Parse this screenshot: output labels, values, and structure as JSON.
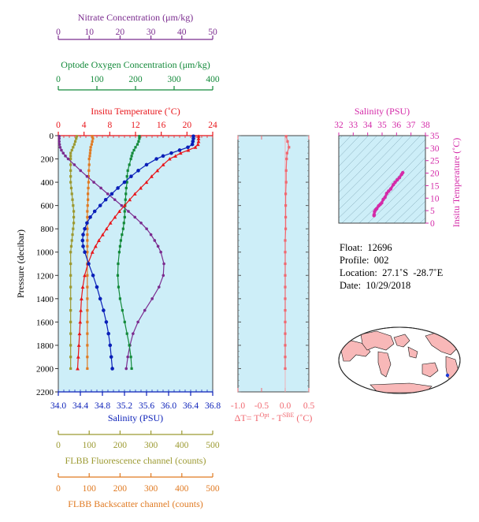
{
  "chart_data": [
    {
      "type": "line",
      "ylabel": "Pressure (decibar)",
      "ylim": [
        2200,
        0
      ],
      "yticks": [
        0,
        200,
        400,
        600,
        800,
        1000,
        1200,
        1400,
        1600,
        1800,
        2000,
        2200
      ],
      "pressure": [
        5,
        25,
        50,
        75,
        100,
        125,
        150,
        175,
        200,
        250,
        300,
        350,
        400,
        450,
        500,
        550,
        600,
        650,
        700,
        750,
        800,
        850,
        900,
        950,
        1000,
        1100,
        1200,
        1300,
        1400,
        1500,
        1600,
        1700,
        1800,
        1900,
        2000
      ],
      "axes": {
        "nitrate": {
          "title": "Nitrate Concentration (μm/kg)",
          "color": "#7b2c8f",
          "lim": [
            0,
            50
          ],
          "ticks": [
            "0",
            "10",
            "20",
            "30",
            "40",
            "50"
          ]
        },
        "oxygen": {
          "title": "Optode Oxygen Concentration (μm/kg)",
          "color": "#138a3a",
          "lim": [
            0,
            400
          ],
          "ticks": [
            "0",
            "100",
            "200",
            "300",
            "400"
          ]
        },
        "temperature": {
          "title": "Insitu Temperature (˚C)",
          "color": "#e8161b",
          "lim": [
            0,
            24
          ],
          "ticks": [
            "0",
            "4",
            "8",
            "12",
            "16",
            "20",
            "24"
          ]
        },
        "salinity": {
          "title": "Salinity (PSU)",
          "color": "#0a1fb8",
          "lim": [
            34.0,
            36.8
          ],
          "ticks": [
            "34.0",
            "34.4",
            "34.8",
            "35.2",
            "35.6",
            "36.0",
            "36.4",
            "36.8"
          ]
        },
        "fluorescence": {
          "title": "FLBB Fluorescence channel (counts)",
          "color": "#9c9a32",
          "lim": [
            0,
            500
          ],
          "ticks": [
            "0",
            "100",
            "200",
            "300",
            "400",
            "500"
          ]
        },
        "backscatter": {
          "title": "FLBB Backscatter channel (counts)",
          "color": "#e07a22",
          "lim": [
            0,
            500
          ],
          "ticks": [
            "0",
            "100",
            "200",
            "300",
            "400",
            "500"
          ]
        }
      },
      "series": [
        {
          "key": "temperature",
          "values": [
            21.8,
            21.8,
            21.8,
            21.7,
            21.3,
            20.2,
            19.0,
            18.2,
            17.3,
            16.3,
            15.4,
            14.5,
            13.7,
            12.8,
            11.9,
            11.1,
            10.3,
            9.5,
            8.8,
            8.1,
            7.5,
            6.9,
            6.3,
            5.8,
            5.3,
            4.6,
            4.1,
            3.8,
            3.6,
            3.5,
            3.4,
            3.3,
            3.2,
            3.1,
            3.0
          ]
        },
        {
          "key": "salinity",
          "values": [
            36.45,
            36.45,
            36.44,
            36.43,
            36.35,
            36.2,
            36.05,
            35.9,
            35.78,
            35.6,
            35.45,
            35.32,
            35.2,
            35.08,
            34.97,
            34.86,
            34.76,
            34.66,
            34.58,
            34.52,
            34.48,
            34.45,
            34.44,
            34.45,
            34.48,
            34.55,
            34.63,
            34.7,
            34.76,
            34.82,
            34.87,
            34.91,
            34.94,
            34.96,
            34.98
          ]
        },
        {
          "key": "oxygen",
          "values": [
            210,
            210,
            208,
            205,
            200,
            196,
            192,
            190,
            188,
            184,
            180,
            178,
            178,
            176,
            175,
            174,
            173,
            172,
            172,
            170,
            168,
            165,
            162,
            160,
            158,
            155,
            154,
            156,
            160,
            166,
            172,
            178,
            184,
            188,
            190
          ]
        },
        {
          "key": "nitrate",
          "values": [
            0.3,
            0.3,
            0.3,
            0.4,
            0.6,
            1.0,
            1.6,
            2.3,
            3.2,
            5.2,
            7.2,
            9.3,
            11.5,
            13.8,
            16.0,
            18.3,
            20.5,
            22.7,
            24.8,
            26.8,
            28.6,
            30.0,
            31.2,
            32.3,
            33.2,
            34.2,
            34.0,
            32.6,
            30.4,
            28.0,
            25.8,
            24.2,
            23.2,
            22.5,
            22.0
          ]
        },
        {
          "key": "fluorescence",
          "values": [
            60,
            58,
            55,
            52,
            48,
            44,
            40,
            40,
            40,
            40,
            40,
            40,
            40,
            42,
            44,
            46,
            48,
            50,
            50,
            50,
            48,
            46,
            44,
            42,
            40,
            40,
            40,
            40,
            40,
            40,
            40,
            40,
            40,
            40,
            40
          ]
        },
        {
          "key": "backscatter",
          "values": [
            110,
            112,
            110,
            108,
            105,
            104,
            103,
            102,
            100,
            100,
            99,
            98,
            98,
            97,
            96,
            96,
            95,
            94,
            94,
            94,
            94,
            94,
            94,
            94,
            94,
            94,
            94,
            94,
            94,
            94,
            94,
            94,
            94,
            94,
            94
          ]
        }
      ]
    },
    {
      "type": "line",
      "xlabel_parts": [
        "ΔT= T",
        "Opt",
        " - T",
        "SBE",
        " (˚C)"
      ],
      "color": "#f06870",
      "xlim": [
        -1.0,
        0.5
      ],
      "xticks": [
        "-1.0",
        "-0.5",
        "0.0",
        "0.5"
      ],
      "ylim": [
        2200,
        0
      ],
      "pressure": [
        5,
        50,
        100,
        150,
        200,
        300,
        400,
        500,
        600,
        700,
        800,
        900,
        1000,
        1100,
        1200,
        1300,
        1400,
        1500,
        1600,
        1700,
        1800,
        1900,
        2000
      ],
      "values": [
        0.02,
        0.05,
        0.08,
        0.04,
        0.03,
        0.02,
        0.02,
        0.01,
        0.01,
        0.01,
        0.01,
        0.0,
        0.0,
        0.0,
        0.0,
        0.0,
        0.0,
        0.0,
        0.0,
        0.0,
        0.0,
        0.0,
        0.0
      ]
    },
    {
      "type": "scatter",
      "xlabel": "Salinity (PSU)",
      "ylabel": "Insitu Temperature (˚C)",
      "color": "#d42aa8",
      "xlim": [
        32,
        38
      ],
      "ylim": [
        0,
        35
      ],
      "xticks": [
        "32",
        "33",
        "34",
        "35",
        "36",
        "37",
        "38"
      ],
      "yticks": [
        "0",
        "5",
        "10",
        "15",
        "20",
        "25",
        "30",
        "35"
      ],
      "x": [
        34.44,
        34.45,
        34.48,
        34.55,
        34.63,
        34.76,
        34.87,
        34.97,
        35.08,
        35.2,
        35.32,
        35.45,
        35.6,
        35.78,
        35.9,
        36.05,
        36.2,
        36.35,
        36.43
      ],
      "y": [
        3.0,
        3.4,
        4.6,
        5.3,
        5.8,
        6.9,
        7.5,
        8.1,
        9.5,
        10.3,
        11.9,
        12.8,
        13.7,
        15.4,
        16.3,
        17.3,
        18.2,
        19.5,
        20.2
      ]
    }
  ],
  "info": {
    "float": "Float:  12696",
    "profile": "Profile:  002",
    "location": "Location:  27.1˚S  -28.7˚E",
    "date": "Date:  10/29/2018"
  }
}
